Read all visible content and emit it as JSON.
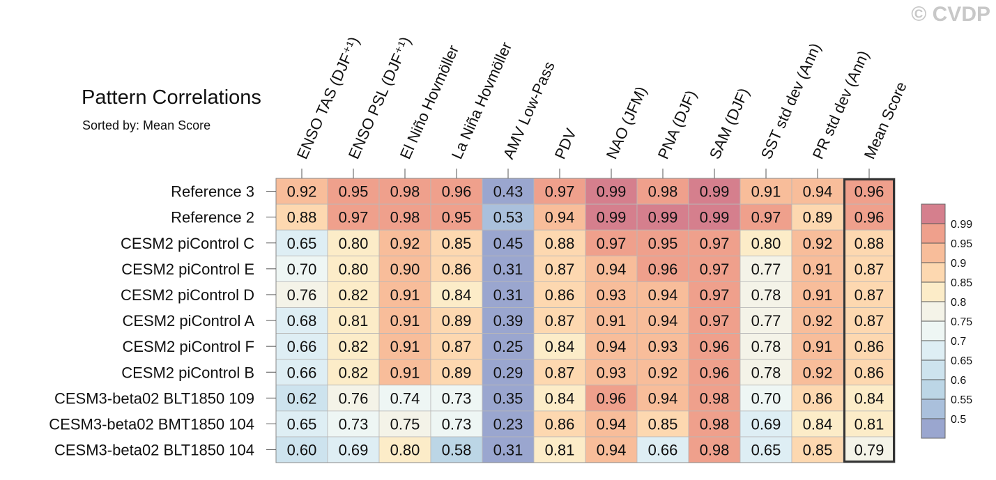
{
  "watermark": "© CVDP",
  "chart_data": {
    "type": "heatmap",
    "title": "Pattern Correlations",
    "subtitle": "Sorted by: Mean Score",
    "columns": [
      "ENSO TAS (DJF⁺¹)",
      "ENSO PSL (DJF⁺¹)",
      "El Niño Hovmöller",
      "La Niña Hovmöller",
      "AMV Low-Pass",
      "PDV",
      "NAO (JFM)",
      "PNA (DJF)",
      "SAM (DJF)",
      "SST std dev (Ann)",
      "PR std dev (Ann)",
      "Mean Score"
    ],
    "rows": [
      "Reference 3",
      "Reference 2",
      "CESM2 piControl C",
      "CESM2 piControl E",
      "CESM2 piControl D",
      "CESM2 piControl A",
      "CESM2 piControl F",
      "CESM2 piControl B",
      "CESM3-beta02 BLT1850 109",
      "CESM3-beta02 BMT1850 104",
      "CESM3-beta02 BLT1850 104"
    ],
    "values": [
      [
        "0.92",
        "0.95",
        "0.98",
        "0.96",
        "0.43",
        "0.97",
        "0.99",
        "0.98",
        "0.99",
        "0.91",
        "0.94",
        "0.96"
      ],
      [
        "0.88",
        "0.97",
        "0.98",
        "0.95",
        "0.53",
        "0.94",
        "0.99",
        "0.99",
        "0.99",
        "0.97",
        "0.89",
        "0.96"
      ],
      [
        "0.65",
        "0.80",
        "0.92",
        "0.85",
        "0.45",
        "0.88",
        "0.97",
        "0.95",
        "0.97",
        "0.80",
        "0.92",
        "0.88"
      ],
      [
        "0.70",
        "0.80",
        "0.90",
        "0.86",
        "0.31",
        "0.87",
        "0.94",
        "0.96",
        "0.97",
        "0.77",
        "0.91",
        "0.87"
      ],
      [
        "0.76",
        "0.82",
        "0.91",
        "0.84",
        "0.31",
        "0.86",
        "0.93",
        "0.94",
        "0.97",
        "0.78",
        "0.91",
        "0.87"
      ],
      [
        "0.68",
        "0.81",
        "0.91",
        "0.89",
        "0.39",
        "0.87",
        "0.91",
        "0.94",
        "0.97",
        "0.77",
        "0.92",
        "0.87"
      ],
      [
        "0.66",
        "0.82",
        "0.91",
        "0.87",
        "0.25",
        "0.84",
        "0.94",
        "0.93",
        "0.96",
        "0.78",
        "0.91",
        "0.86"
      ],
      [
        "0.66",
        "0.82",
        "0.91",
        "0.89",
        "0.29",
        "0.87",
        "0.93",
        "0.92",
        "0.96",
        "0.78",
        "0.92",
        "0.86"
      ],
      [
        "0.62",
        "0.76",
        "0.74",
        "0.73",
        "0.35",
        "0.84",
        "0.96",
        "0.94",
        "0.98",
        "0.70",
        "0.86",
        "0.84"
      ],
      [
        "0.65",
        "0.73",
        "0.75",
        "0.73",
        "0.23",
        "0.86",
        "0.94",
        "0.85",
        "0.98",
        "0.69",
        "0.84",
        "0.81"
      ],
      [
        "0.60",
        "0.69",
        "0.80",
        "0.58",
        "0.31",
        "0.81",
        "0.94",
        "0.66",
        "0.98",
        "0.65",
        "0.85",
        "0.79"
      ]
    ],
    "colorbar": {
      "levels": [
        0.5,
        0.55,
        0.6,
        0.65,
        0.7,
        0.75,
        0.8,
        0.85,
        0.9,
        0.95,
        0.99
      ],
      "labels": [
        "0.5",
        "0.55",
        "0.6",
        "0.65",
        "0.7",
        "0.75",
        "0.8",
        "0.85",
        "0.9",
        "0.95",
        "0.99"
      ],
      "colors": [
        "#9aa6cf",
        "#aac0dc",
        "#bcd6e6",
        "#cde3ee",
        "#deeef4",
        "#eef6f4",
        "#f4f3e8",
        "#fcecc8",
        "#fdd8b0",
        "#f8bd9a",
        "#efa08c",
        "#d57f8d"
      ]
    },
    "highlight_column": "Mean Score"
  }
}
